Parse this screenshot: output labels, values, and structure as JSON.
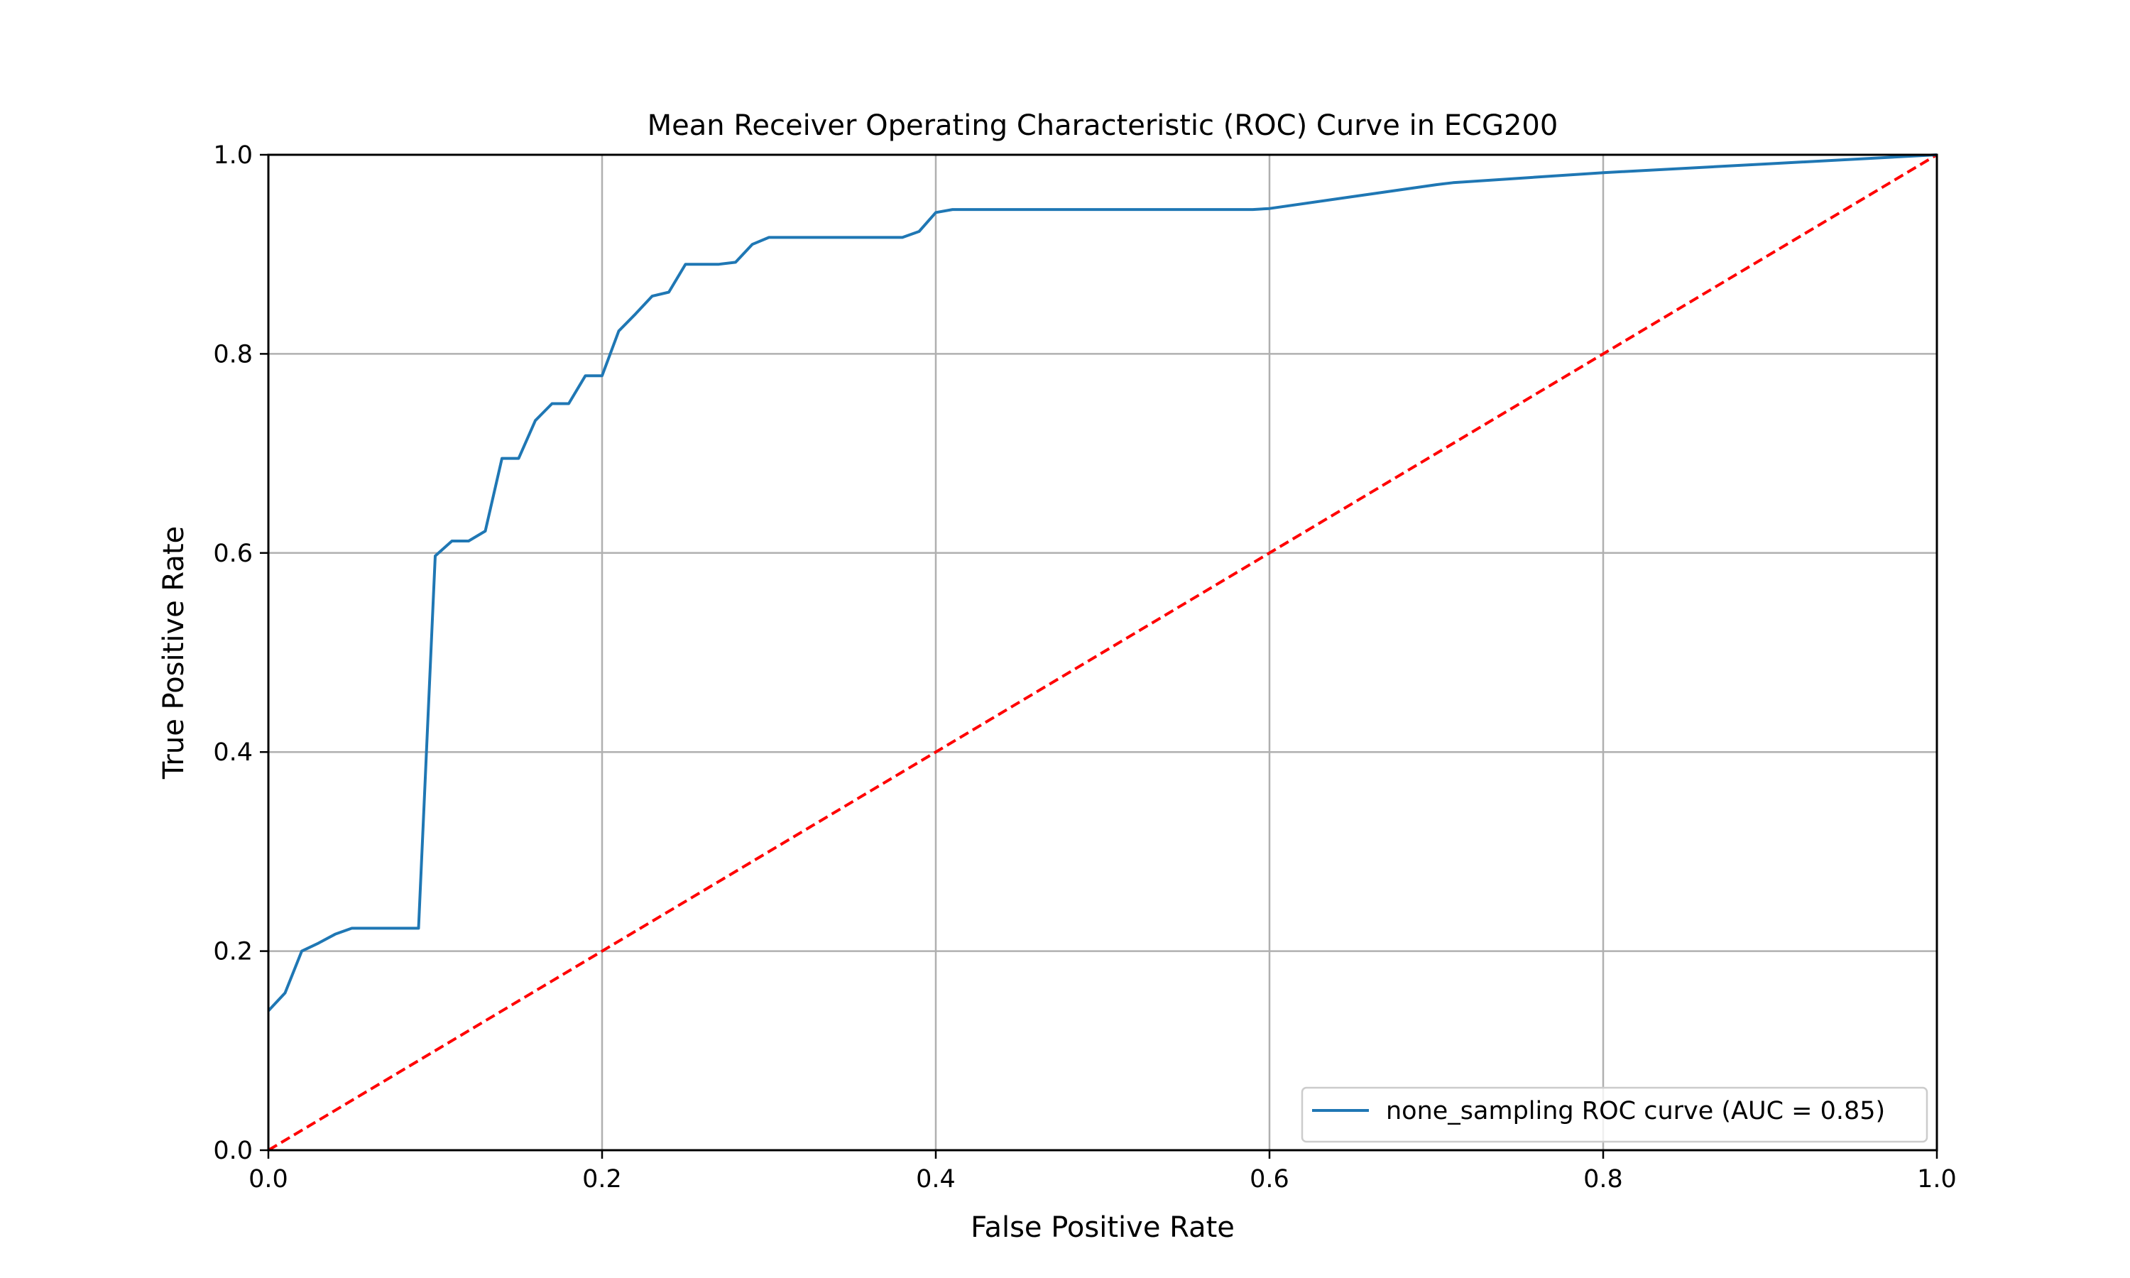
{
  "chart_data": {
    "type": "line",
    "title": "Mean Receiver Operating Characteristic (ROC) Curve in ECG200",
    "xlabel": "False Positive Rate",
    "ylabel": "True Positive Rate",
    "xlim": [
      0.0,
      1.0
    ],
    "ylim": [
      0.0,
      1.0
    ],
    "x_ticks": [
      "0.0",
      "0.2",
      "0.4",
      "0.6",
      "0.8",
      "1.0"
    ],
    "y_ticks": [
      "0.0",
      "0.2",
      "0.4",
      "0.6",
      "0.8",
      "1.0"
    ],
    "tick_values": [
      0.0,
      0.2,
      0.4,
      0.6,
      0.8,
      1.0
    ],
    "grid": true,
    "legend_position": "lower-right",
    "series": [
      {
        "name": "none_sampling ROC curve (AUC = 0.85)",
        "color": "#1f77b4",
        "style": "solid",
        "x": [
          0.0,
          0.01,
          0.02,
          0.03,
          0.04,
          0.05,
          0.06,
          0.07,
          0.08,
          0.09,
          0.1,
          0.11,
          0.12,
          0.13,
          0.14,
          0.15,
          0.16,
          0.17,
          0.18,
          0.19,
          0.2,
          0.21,
          0.22,
          0.23,
          0.24,
          0.25,
          0.26,
          0.27,
          0.28,
          0.29,
          0.3,
          0.31,
          0.32,
          0.33,
          0.34,
          0.35,
          0.36,
          0.37,
          0.38,
          0.39,
          0.4,
          0.41,
          0.42,
          0.45,
          0.5,
          0.55,
          0.59,
          0.6,
          0.65,
          0.7,
          0.71,
          0.8,
          0.9,
          1.0
        ],
        "y": [
          0.14,
          0.158,
          0.2,
          0.208,
          0.217,
          0.223,
          0.223,
          0.223,
          0.223,
          0.223,
          0.597,
          0.612,
          0.612,
          0.622,
          0.695,
          0.695,
          0.733,
          0.75,
          0.75,
          0.778,
          0.778,
          0.823,
          0.84,
          0.858,
          0.862,
          0.89,
          0.89,
          0.89,
          0.892,
          0.91,
          0.917,
          0.917,
          0.917,
          0.917,
          0.917,
          0.917,
          0.917,
          0.917,
          0.917,
          0.923,
          0.942,
          0.945,
          0.945,
          0.945,
          0.945,
          0.945,
          0.945,
          0.946,
          0.958,
          0.97,
          0.972,
          0.982,
          0.991,
          1.0
        ]
      },
      {
        "name": "",
        "color": "#ff0000",
        "style": "dashed",
        "x": [
          0.0,
          1.0
        ],
        "y": [
          0.0,
          1.0
        ]
      }
    ]
  }
}
